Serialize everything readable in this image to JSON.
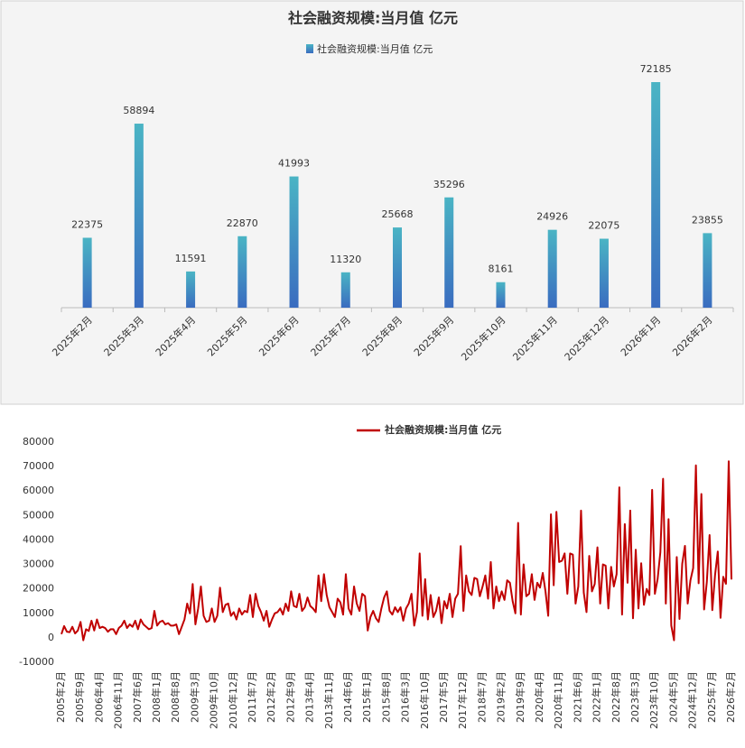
{
  "chart_data": [
    {
      "type": "bar",
      "title": "社会融资规模:当月值 亿元",
      "categories": [
        "2025年2月",
        "2025年3月",
        "2025年4月",
        "2025年5月",
        "2025年6月",
        "2025年7月",
        "2025年8月",
        "2025年9月",
        "2025年10月",
        "2025年11月",
        "2025年12月",
        "2026年1月",
        "2026年2月"
      ],
      "series": [
        {
          "name": "社会融资规模:当月值 亿元",
          "color": "#4ab4c4",
          "values": [
            22375,
            58894,
            11591,
            22870,
            41993,
            11320,
            25668,
            35296,
            8161,
            24926,
            22075,
            72185,
            23855
          ]
        }
      ]
    },
    {
      "type": "line",
      "categories": [
        "2005年2月",
        null,
        null,
        null,
        null,
        null,
        null,
        "2005年9月",
        null,
        null,
        null,
        null,
        null,
        null,
        "2006年4月",
        null,
        null,
        null,
        null,
        null,
        null,
        "2006年11月",
        null,
        null,
        null,
        null,
        null,
        null,
        "2007年6月",
        null,
        null,
        null,
        null,
        null,
        null,
        "2008年1月",
        null,
        null,
        null,
        null,
        null,
        null,
        "2008年8月",
        null,
        null,
        null,
        null,
        null,
        null,
        "2009年3月",
        null,
        null,
        null,
        null,
        null,
        null,
        "2009年10月",
        null,
        null,
        null,
        null,
        null,
        null,
        "2010年12月",
        null,
        null,
        null,
        null,
        null,
        null,
        "2011年7月",
        null,
        null,
        null,
        null,
        null,
        null,
        "2012年2月",
        null,
        null,
        null,
        null,
        null,
        null,
        "2012年9月",
        null,
        null,
        null,
        null,
        null,
        null,
        "2013年4月",
        null,
        null,
        null,
        null,
        null,
        null,
        "2013年11月",
        null,
        null,
        null,
        null,
        null,
        null,
        "2014年6月",
        null,
        null,
        null,
        null,
        null,
        null,
        "2015年1月",
        null,
        null,
        null,
        null,
        null,
        null,
        "2015年8月",
        null,
        null,
        null,
        null,
        null,
        null,
        "2016年3月",
        null,
        null,
        null,
        null,
        null,
        null,
        "2016年10月",
        null,
        null,
        null,
        null,
        null,
        null,
        "2017年5月",
        null,
        null,
        null,
        null,
        null,
        null,
        "2017年12月",
        null,
        null,
        null,
        null,
        null,
        null,
        "2018年7月",
        null,
        null,
        null,
        null,
        null,
        null,
        "2019年2月",
        null,
        null,
        null,
        null,
        null,
        null,
        "2019年9月",
        null,
        null,
        null,
        null,
        null,
        null,
        "2020年4月",
        null,
        null,
        null,
        null,
        null,
        null,
        "2020年11月",
        null,
        null,
        null,
        null,
        null,
        null,
        "2021年6月",
        null,
        null,
        null,
        null,
        null,
        null,
        "2022年1月",
        null,
        null,
        null,
        null,
        null,
        null,
        "2022年8月",
        null,
        null,
        null,
        null,
        null,
        null,
        "2023年3月",
        null,
        null,
        null,
        null,
        null,
        null,
        "2023年10月",
        null,
        null,
        null,
        null,
        null,
        null,
        "2024年5月",
        null,
        null,
        null,
        null,
        null,
        null,
        "2024年12月",
        null,
        null,
        null,
        null,
        null,
        null,
        "2025年7月",
        null,
        null,
        null,
        null,
        null,
        null,
        "2026年2月"
      ],
      "series": [
        {
          "name": "社会融资规模:当月值 亿元",
          "color": "#c00000",
          "values": [
            1500,
            4800,
            2500,
            2300,
            4500,
            1800,
            3000,
            6500,
            -1000,
            3500,
            2800,
            7000,
            3000,
            7500,
            4000,
            4500,
            4000,
            2500,
            3500,
            3500,
            1500,
            4000,
            5000,
            7000,
            4000,
            5500,
            4500,
            7000,
            3500,
            7500,
            5500,
            4500,
            3500,
            4000,
            11000,
            5000,
            6500,
            7000,
            5500,
            6000,
            5000,
            5000,
            5500,
            1500,
            4500,
            7500,
            14000,
            10000,
            22000,
            5500,
            12000,
            21000,
            9000,
            6500,
            7000,
            12000,
            6500,
            9000,
            20500,
            10500,
            13500,
            14000,
            9000,
            10500,
            7500,
            12000,
            9500,
            11000,
            10500,
            17500,
            8500,
            18000,
            13000,
            10500,
            7000,
            11000,
            4500,
            7500,
            10000,
            10500,
            12000,
            9500,
            14000,
            11000,
            19000,
            13000,
            12500,
            18000,
            11000,
            12500,
            16500,
            13000,
            12000,
            10500,
            25500,
            15000,
            26000,
            17500,
            12500,
            10500,
            8500,
            16000,
            14500,
            9500,
            26000,
            12000,
            9500,
            21000,
            14000,
            11000,
            18000,
            17000,
            3000,
            8500,
            11000,
            8000,
            6500,
            12000,
            16500,
            19000,
            11000,
            9500,
            12500,
            10500,
            12500,
            7000,
            12000,
            14000,
            18000,
            5000,
            10500,
            34500,
            9000,
            24000,
            7500,
            17500,
            8500,
            11000,
            16500,
            6000,
            15000,
            12000,
            18000,
            8500,
            16000,
            18000,
            37500,
            11000,
            25500,
            19000,
            17500,
            24500,
            24000,
            17000,
            21000,
            25500,
            16000,
            31000,
            12000,
            21000,
            15000,
            19000,
            15500,
            23500,
            22500,
            15000,
            10000,
            47000,
            9500,
            30000,
            17000,
            18000,
            26000,
            15500,
            22500,
            20500,
            26500,
            19000,
            9000,
            50500,
            21500,
            51500,
            31000,
            31500,
            34500,
            18000,
            34500,
            34000,
            14000,
            21000,
            52000,
            18500,
            10500,
            33500,
            19000,
            22000,
            37000,
            14000,
            30000,
            29500,
            12000,
            29000,
            21000,
            26000,
            61500,
            9500,
            46500,
            22500,
            52000,
            8000,
            36000,
            12000,
            30500,
            13500,
            20000,
            17500,
            60500,
            18000,
            24000,
            35000,
            65000,
            14000,
            48500,
            5000,
            -1000,
            33000,
            7700,
            30300,
            37600,
            14000,
            23500,
            28500,
            70500,
            22300,
            58800,
            11600,
            22900,
            42000,
            11320,
            25668,
            35296,
            8161,
            24926,
            22075,
            72185,
            23855
          ]
        }
      ],
      "ylim": [
        -10000,
        80000
      ],
      "yticks": [
        -10000,
        0,
        10000,
        20000,
        30000,
        40000,
        50000,
        60000,
        70000,
        80000
      ]
    }
  ]
}
